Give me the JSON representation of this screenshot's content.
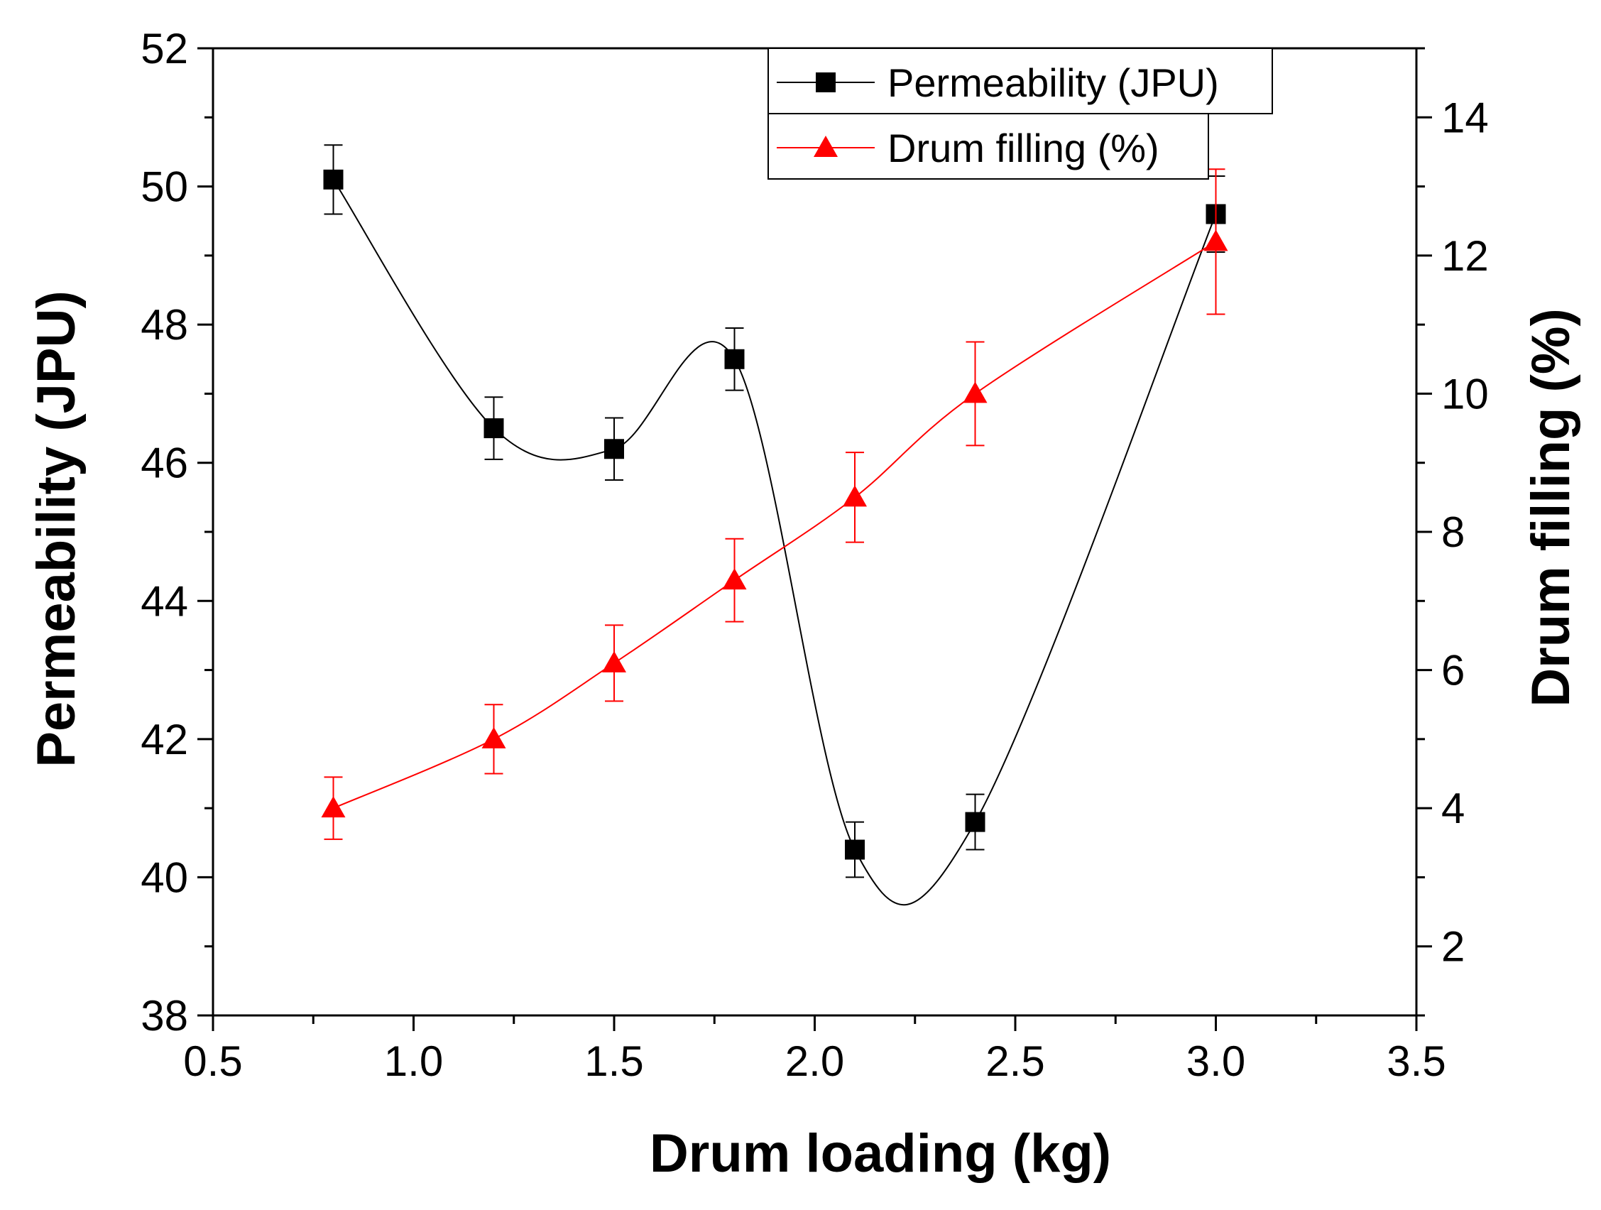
{
  "chart_data": {
    "type": "line",
    "xlabel": "Drum loading (kg)",
    "ylabel_left": "Permeability (JPU)",
    "ylabel_right": "Drum filling (%)",
    "xlim": [
      0.5,
      3.5
    ],
    "ylim_left": [
      38,
      52
    ],
    "ylim_right": [
      1,
      15
    ],
    "x_ticks": [
      0.5,
      1.0,
      1.5,
      2.0,
      2.5,
      3.0,
      3.5
    ],
    "x_tick_labels": [
      "0.5",
      "1.0",
      "1.5",
      "2.0",
      "2.5",
      "3.0",
      "3.5"
    ],
    "y_left_ticks": [
      38,
      40,
      42,
      44,
      46,
      48,
      50,
      52
    ],
    "y_left_tick_labels": [
      "38",
      "40",
      "42",
      "44",
      "46",
      "48",
      "50",
      "52"
    ],
    "y_right_ticks": [
      2,
      4,
      6,
      8,
      10,
      12,
      14
    ],
    "y_right_tick_labels": [
      "2",
      "4",
      "6",
      "8",
      "10",
      "12",
      "14"
    ],
    "grid": false,
    "legend_position": "top-right",
    "series": [
      {
        "name": "Permeability (JPU)",
        "axis": "left",
        "color": "#000000",
        "marker": "square",
        "x": [
          0.8,
          1.2,
          1.5,
          1.8,
          2.1,
          2.4,
          3.0
        ],
        "y": [
          50.1,
          46.5,
          46.2,
          47.5,
          40.4,
          40.8,
          49.6
        ],
        "error": [
          0.5,
          0.45,
          0.45,
          0.45,
          0.4,
          0.4,
          0.55
        ]
      },
      {
        "name": "Drum filling (%)",
        "axis": "right",
        "color": "#ff0000",
        "marker": "triangle",
        "x": [
          0.8,
          1.2,
          1.5,
          1.8,
          2.1,
          2.4,
          3.0
        ],
        "y": [
          4.0,
          5.0,
          6.1,
          7.3,
          8.5,
          10.0,
          12.2
        ],
        "error": [
          0.45,
          0.5,
          0.55,
          0.6,
          0.65,
          0.75,
          1.05
        ]
      }
    ]
  }
}
